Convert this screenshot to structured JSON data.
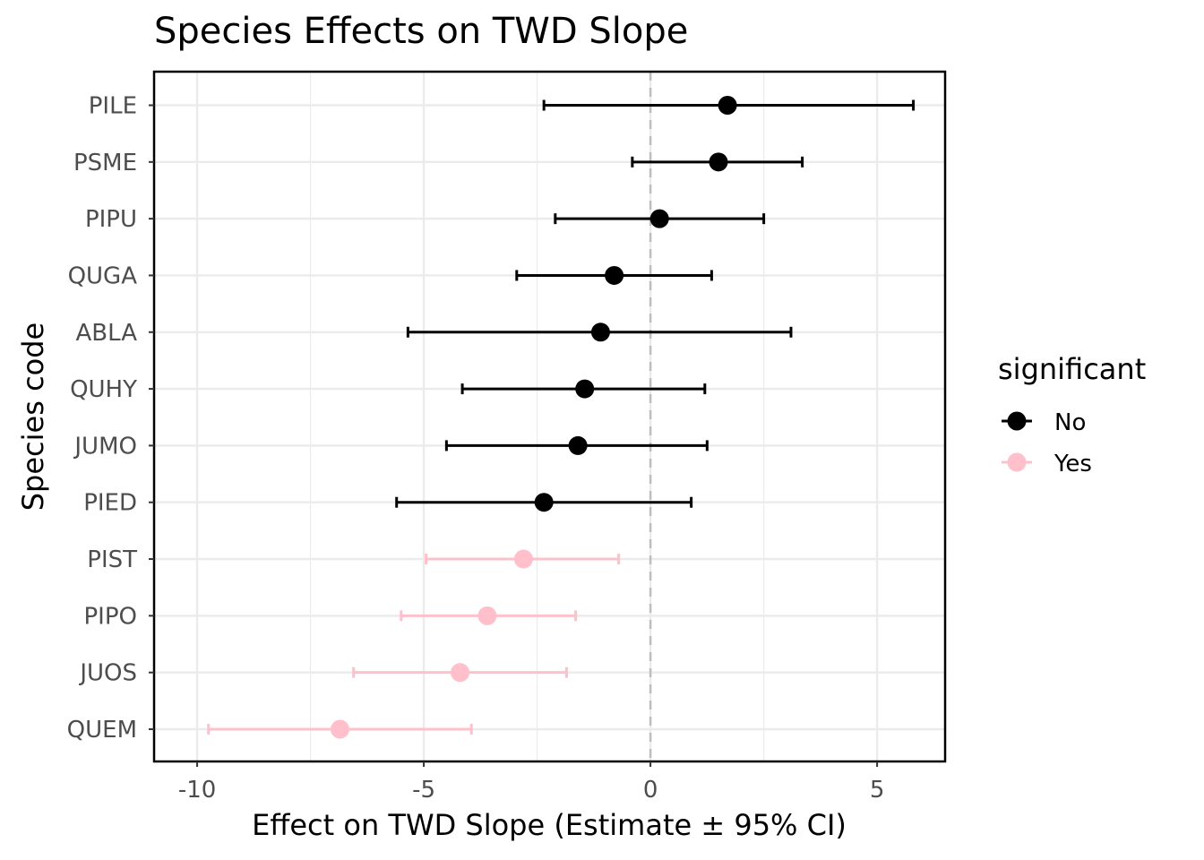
{
  "chart_data": {
    "type": "scatter",
    "subtype": "point-range (forest plot)",
    "title": "Species Effects on TWD Slope",
    "xlabel": "Effect on TWD Slope (Estimate ± 95% CI)",
    "ylabel": "Species code",
    "xlim": [
      -10.95,
      6.5
    ],
    "xticks": [
      -10,
      -5,
      0,
      5
    ],
    "xtick_labels": [
      "-10",
      "-5",
      "0",
      "5"
    ],
    "reference_line_x": 0,
    "grid": true,
    "legend": {
      "title": "significant",
      "position": "right",
      "entries": [
        {
          "label": "No",
          "color": "#000000"
        },
        {
          "label": "Yes",
          "color": "#ffc0cb"
        }
      ]
    },
    "series": [
      {
        "species": "PILE",
        "estimate": 1.7,
        "lower": -2.35,
        "upper": 5.8,
        "significant": "No"
      },
      {
        "species": "PSME",
        "estimate": 1.5,
        "lower": -0.4,
        "upper": 3.35,
        "significant": "No"
      },
      {
        "species": "PIPU",
        "estimate": 0.2,
        "lower": -2.1,
        "upper": 2.5,
        "significant": "No"
      },
      {
        "species": "QUGA",
        "estimate": -0.8,
        "lower": -2.95,
        "upper": 1.35,
        "significant": "No"
      },
      {
        "species": "ABLA",
        "estimate": -1.1,
        "lower": -5.35,
        "upper": 3.1,
        "significant": "No"
      },
      {
        "species": "QUHY",
        "estimate": -1.45,
        "lower": -4.15,
        "upper": 1.2,
        "significant": "No"
      },
      {
        "species": "JUMO",
        "estimate": -1.6,
        "lower": -4.5,
        "upper": 1.25,
        "significant": "No"
      },
      {
        "species": "PIED",
        "estimate": -2.35,
        "lower": -5.6,
        "upper": 0.9,
        "significant": "No"
      },
      {
        "species": "PIST",
        "estimate": -2.8,
        "lower": -4.95,
        "upper": -0.7,
        "significant": "Yes"
      },
      {
        "species": "PIPO",
        "estimate": -3.6,
        "lower": -5.5,
        "upper": -1.65,
        "significant": "Yes"
      },
      {
        "species": "JUOS",
        "estimate": -4.2,
        "lower": -6.55,
        "upper": -1.85,
        "significant": "Yes"
      },
      {
        "species": "QUEM",
        "estimate": -6.85,
        "lower": -9.75,
        "upper": -3.95,
        "significant": "Yes"
      }
    ]
  }
}
